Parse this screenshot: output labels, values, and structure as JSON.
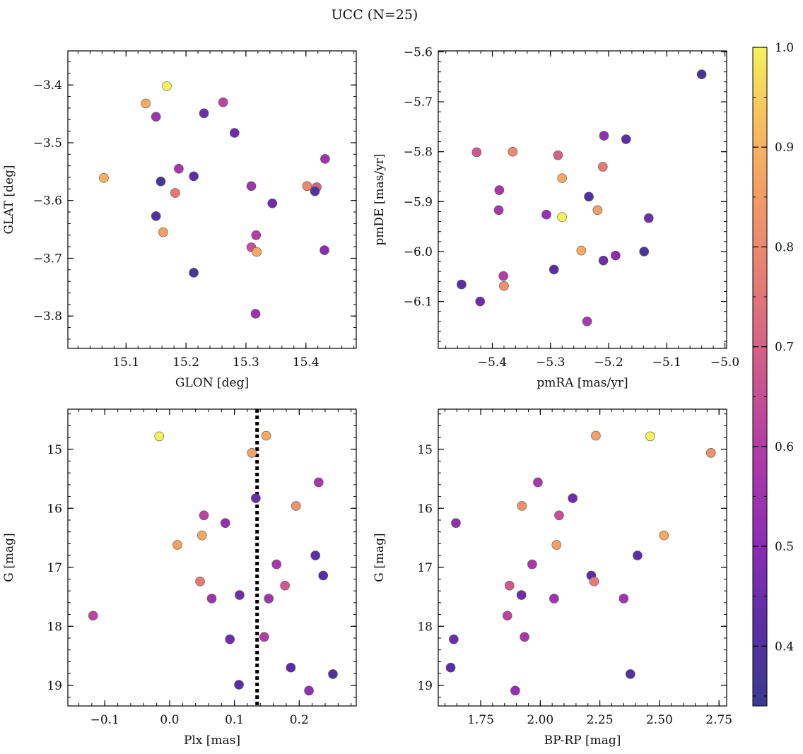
{
  "title": "UCC (N=25)",
  "colorbar": {
    "min": 0.34,
    "max": 1.0,
    "ticks": [
      0.4,
      0.5,
      0.6,
      0.7,
      0.8,
      0.9,
      1.0
    ],
    "tick_labels": [
      "0.4",
      "0.5",
      "0.6",
      "0.7",
      "0.8",
      "0.9",
      "1.0"
    ],
    "colormap": "plasma"
  },
  "chart_data": [
    {
      "type": "scatter",
      "xlabel": "GLON [deg]",
      "ylabel": "GLAT [deg]",
      "xlim": [
        15.003,
        15.484
      ],
      "ylim": [
        -3.856,
        -3.341
      ],
      "xticks": [
        15.1,
        15.2,
        15.3,
        15.4
      ],
      "xtick_labels": [
        "15.1",
        "15.2",
        "15.3",
        "15.4"
      ],
      "yticks": [
        -3.8,
        -3.7,
        -3.6,
        -3.5,
        -3.4
      ],
      "ytick_labels": [
        "−3.8",
        "−3.7",
        "−3.6",
        "−3.5",
        "−3.4"
      ],
      "grid": false,
      "points": [
        {
          "x": 15.168,
          "y": -3.402,
          "c": 1.0
        },
        {
          "x": 15.133,
          "y": -3.432,
          "c": 0.88
        },
        {
          "x": 15.15,
          "y": -3.455,
          "c": 0.55
        },
        {
          "x": 15.262,
          "y": -3.43,
          "c": 0.62
        },
        {
          "x": 15.23,
          "y": -3.449,
          "c": 0.45
        },
        {
          "x": 15.281,
          "y": -3.483,
          "c": 0.45
        },
        {
          "x": 15.063,
          "y": -3.561,
          "c": 0.9
        },
        {
          "x": 15.188,
          "y": -3.545,
          "c": 0.57
        },
        {
          "x": 15.213,
          "y": -3.558,
          "c": 0.42
        },
        {
          "x": 15.158,
          "y": -3.567,
          "c": 0.38
        },
        {
          "x": 15.182,
          "y": -3.587,
          "c": 0.76
        },
        {
          "x": 15.309,
          "y": -3.575,
          "c": 0.55
        },
        {
          "x": 15.402,
          "y": -3.575,
          "c": 0.8
        },
        {
          "x": 15.418,
          "y": -3.577,
          "c": 0.7
        },
        {
          "x": 15.415,
          "y": -3.584,
          "c": 0.4
        },
        {
          "x": 15.432,
          "y": -3.528,
          "c": 0.55
        },
        {
          "x": 15.344,
          "y": -3.605,
          "c": 0.45
        },
        {
          "x": 15.15,
          "y": -3.627,
          "c": 0.4
        },
        {
          "x": 15.162,
          "y": -3.655,
          "c": 0.86
        },
        {
          "x": 15.317,
          "y": -3.66,
          "c": 0.6
        },
        {
          "x": 15.309,
          "y": -3.681,
          "c": 0.65
        },
        {
          "x": 15.318,
          "y": -3.689,
          "c": 0.88
        },
        {
          "x": 15.431,
          "y": -3.686,
          "c": 0.5
        },
        {
          "x": 15.213,
          "y": -3.725,
          "c": 0.38
        },
        {
          "x": 15.316,
          "y": -3.796,
          "c": 0.55
        }
      ]
    },
    {
      "type": "scatter",
      "xlabel": "pmRA [mas/yr]",
      "ylabel": "pmDE [mas/yr]",
      "xlim": [
        -5.493,
        -4.997
      ],
      "ylim": [
        -6.194,
        -5.598
      ],
      "xticks": [
        -5.4,
        -5.3,
        -5.2,
        -5.1,
        -5.0
      ],
      "xtick_labels": [
        "−5.4",
        "−5.3",
        "−5.2",
        "−5.1",
        "−5.0"
      ],
      "yticks": [
        -6.1,
        -6.0,
        -5.9,
        -5.8,
        -5.7,
        -5.6
      ],
      "ytick_labels": [
        "−6.1",
        "−6.0",
        "−5.9",
        "−5.8",
        "−5.7",
        "−5.6"
      ],
      "grid": false,
      "points": [
        {
          "x": -5.04,
          "y": -5.645,
          "c": 0.38
        },
        {
          "x": -5.17,
          "y": -5.775,
          "c": 0.42
        },
        {
          "x": -5.208,
          "y": -5.768,
          "c": 0.52
        },
        {
          "x": -5.427,
          "y": -5.801,
          "c": 0.68
        },
        {
          "x": -5.365,
          "y": -5.8,
          "c": 0.8
        },
        {
          "x": -5.287,
          "y": -5.807,
          "c": 0.7
        },
        {
          "x": -5.21,
          "y": -5.83,
          "c": 0.76
        },
        {
          "x": -5.28,
          "y": -5.853,
          "c": 0.88
        },
        {
          "x": -5.388,
          "y": -5.877,
          "c": 0.57
        },
        {
          "x": -5.234,
          "y": -5.89,
          "c": 0.4
        },
        {
          "x": -5.389,
          "y": -5.917,
          "c": 0.57
        },
        {
          "x": -5.219,
          "y": -5.917,
          "c": 0.86
        },
        {
          "x": -5.307,
          "y": -5.926,
          "c": 0.53
        },
        {
          "x": -5.28,
          "y": -5.931,
          "c": 1.0
        },
        {
          "x": -5.131,
          "y": -5.933,
          "c": 0.45
        },
        {
          "x": -5.247,
          "y": -5.998,
          "c": 0.88
        },
        {
          "x": -5.139,
          "y": -6.0,
          "c": 0.38
        },
        {
          "x": -5.188,
          "y": -6.008,
          "c": 0.5
        },
        {
          "x": -5.209,
          "y": -6.018,
          "c": 0.45
        },
        {
          "x": -5.294,
          "y": -6.036,
          "c": 0.42
        },
        {
          "x": -5.381,
          "y": -6.049,
          "c": 0.6
        },
        {
          "x": -5.453,
          "y": -6.066,
          "c": 0.42
        },
        {
          "x": -5.38,
          "y": -6.069,
          "c": 0.82
        },
        {
          "x": -5.421,
          "y": -6.1,
          "c": 0.45
        },
        {
          "x": -5.237,
          "y": -6.14,
          "c": 0.57
        }
      ]
    },
    {
      "type": "scatter",
      "xlabel": "Plx [mas]",
      "ylabel": "G [mag]",
      "xlim": [
        -0.157,
        0.288
      ],
      "ylim": [
        19.35,
        14.32
      ],
      "y_inverted": true,
      "xticks": [
        -0.1,
        0.0,
        0.1,
        0.2
      ],
      "xtick_labels": [
        "−0.1",
        "0.0",
        "0.1",
        "0.2"
      ],
      "yticks": [
        15,
        16,
        17,
        18,
        19
      ],
      "ytick_labels": [
        "15",
        "16",
        "17",
        "18",
        "19"
      ],
      "grid": false,
      "vline": {
        "x": 0.135,
        "style": "dotted",
        "color": "#000000"
      },
      "points": [
        {
          "x": -0.016,
          "y": 14.78,
          "c": 1.0
        },
        {
          "x": 0.149,
          "y": 14.77,
          "c": 0.88
        },
        {
          "x": 0.127,
          "y": 15.06,
          "c": 0.86
        },
        {
          "x": 0.23,
          "y": 15.56,
          "c": 0.57
        },
        {
          "x": 0.133,
          "y": 15.83,
          "c": 0.45
        },
        {
          "x": 0.195,
          "y": 15.96,
          "c": 0.82
        },
        {
          "x": 0.053,
          "y": 16.12,
          "c": 0.62
        },
        {
          "x": 0.086,
          "y": 16.25,
          "c": 0.52
        },
        {
          "x": 0.05,
          "y": 16.46,
          "c": 0.88
        },
        {
          "x": 0.012,
          "y": 16.62,
          "c": 0.86
        },
        {
          "x": 0.225,
          "y": 16.8,
          "c": 0.42
        },
        {
          "x": 0.165,
          "y": 16.95,
          "c": 0.57
        },
        {
          "x": 0.237,
          "y": 17.14,
          "c": 0.42
        },
        {
          "x": 0.047,
          "y": 17.24,
          "c": 0.76
        },
        {
          "x": 0.178,
          "y": 17.31,
          "c": 0.68
        },
        {
          "x": 0.108,
          "y": 17.47,
          "c": 0.45
        },
        {
          "x": 0.065,
          "y": 17.53,
          "c": 0.55
        },
        {
          "x": 0.153,
          "y": 17.53,
          "c": 0.55
        },
        {
          "x": -0.118,
          "y": 17.82,
          "c": 0.62
        },
        {
          "x": 0.146,
          "y": 18.18,
          "c": 0.6
        },
        {
          "x": 0.093,
          "y": 18.22,
          "c": 0.45
        },
        {
          "x": 0.187,
          "y": 18.7,
          "c": 0.42
        },
        {
          "x": 0.252,
          "y": 18.81,
          "c": 0.4
        },
        {
          "x": 0.107,
          "y": 18.99,
          "c": 0.42
        },
        {
          "x": 0.215,
          "y": 19.09,
          "c": 0.52
        }
      ]
    },
    {
      "type": "scatter",
      "xlabel": "BP-RP [mag]",
      "ylabel": "G [mag]",
      "xlim": [
        1.572,
        2.782
      ],
      "ylim": [
        19.35,
        14.32
      ],
      "y_inverted": true,
      "xticks": [
        1.75,
        2.0,
        2.25,
        2.5,
        2.75
      ],
      "xtick_labels": [
        "1.75",
        "2.00",
        "2.25",
        "2.50",
        "2.75"
      ],
      "yticks": [
        15,
        16,
        17,
        18,
        19
      ],
      "ytick_labels": [
        "15",
        "16",
        "17",
        "18",
        "19"
      ],
      "grid": false,
      "points": [
        {
          "x": 2.233,
          "y": 14.77,
          "c": 0.86
        },
        {
          "x": 2.461,
          "y": 14.78,
          "c": 1.0
        },
        {
          "x": 2.716,
          "y": 15.06,
          "c": 0.82
        },
        {
          "x": 1.99,
          "y": 15.56,
          "c": 0.57
        },
        {
          "x": 2.136,
          "y": 15.83,
          "c": 0.45
        },
        {
          "x": 1.923,
          "y": 15.96,
          "c": 0.82
        },
        {
          "x": 2.079,
          "y": 16.12,
          "c": 0.65
        },
        {
          "x": 1.646,
          "y": 16.25,
          "c": 0.52
        },
        {
          "x": 2.519,
          "y": 16.46,
          "c": 0.88
        },
        {
          "x": 2.068,
          "y": 16.62,
          "c": 0.86
        },
        {
          "x": 2.408,
          "y": 16.8,
          "c": 0.42
        },
        {
          "x": 1.966,
          "y": 16.95,
          "c": 0.57
        },
        {
          "x": 2.214,
          "y": 17.14,
          "c": 0.42
        },
        {
          "x": 2.226,
          "y": 17.24,
          "c": 0.76
        },
        {
          "x": 1.871,
          "y": 17.31,
          "c": 0.68
        },
        {
          "x": 1.921,
          "y": 17.47,
          "c": 0.45
        },
        {
          "x": 2.058,
          "y": 17.53,
          "c": 0.55
        },
        {
          "x": 2.35,
          "y": 17.53,
          "c": 0.55
        },
        {
          "x": 1.862,
          "y": 17.82,
          "c": 0.62
        },
        {
          "x": 1.934,
          "y": 18.18,
          "c": 0.57
        },
        {
          "x": 1.637,
          "y": 18.22,
          "c": 0.45
        },
        {
          "x": 1.624,
          "y": 18.7,
          "c": 0.42
        },
        {
          "x": 2.378,
          "y": 18.81,
          "c": 0.4
        },
        {
          "x": 1.895,
          "y": 19.09,
          "c": 0.52
        }
      ]
    }
  ]
}
